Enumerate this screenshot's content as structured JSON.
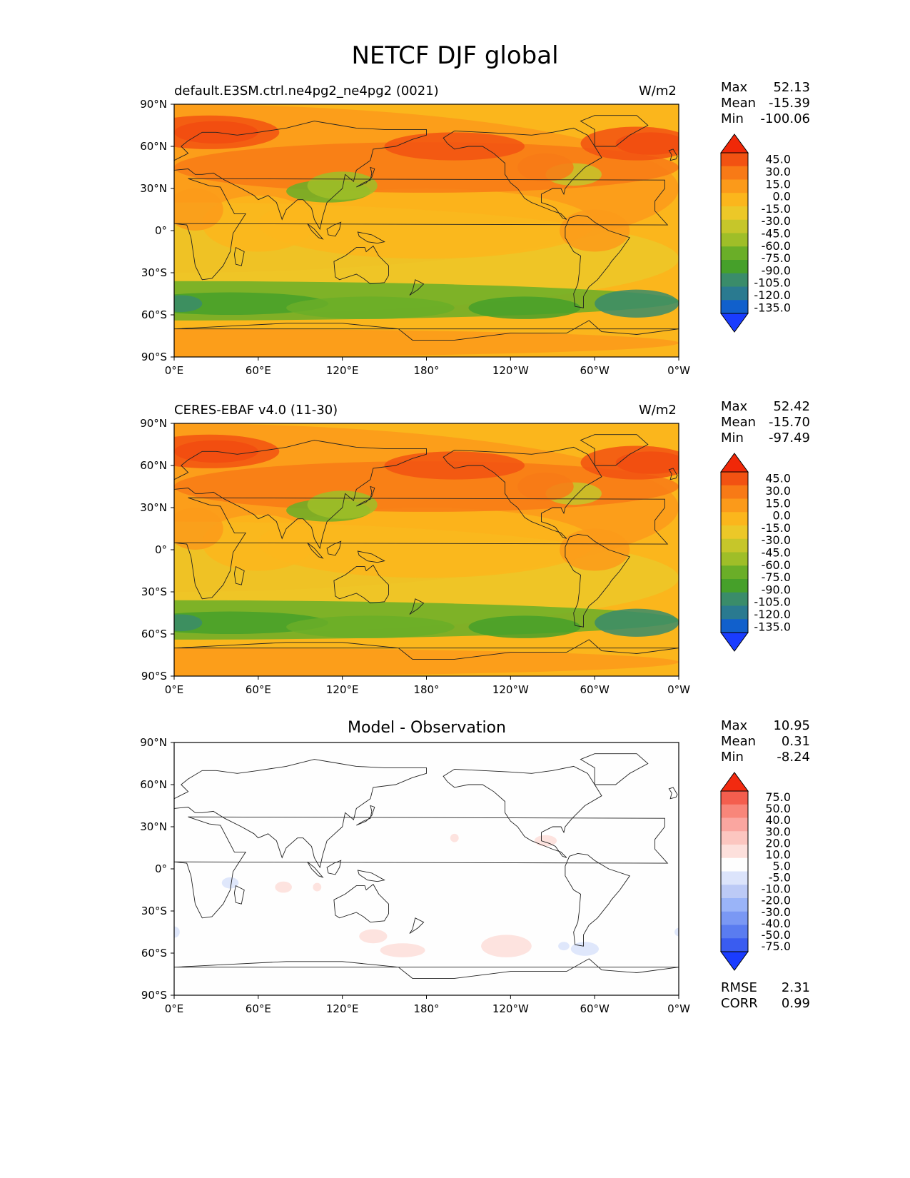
{
  "title": "NETCF DJF global",
  "units": "W/m2",
  "x_ticks": [
    "0°E",
    "60°E",
    "120°E",
    "180°",
    "120°W",
    "60°W",
    "0°W"
  ],
  "y_ticks": [
    "90°N",
    "60°N",
    "30°N",
    "0°",
    "30°S",
    "60°S",
    "90°S"
  ],
  "stats_labels": {
    "max": "Max",
    "mean": "Mean",
    "min": "Min",
    "rmse": "RMSE",
    "corr": "CORR"
  },
  "colors": {
    "land_outline": "#222222",
    "fill_levels_main": [
      "#1a3cff",
      "#1160cc",
      "#2a7a90",
      "#3a8c6a",
      "#46a02a",
      "#6aae28",
      "#9fbe28",
      "#c6c62a",
      "#ecc828",
      "#fbb61c",
      "#fb9a1a",
      "#f87a16",
      "#f25212",
      "#f02808"
    ],
    "fill_levels_diff": [
      "#1a3cff",
      "#3a5cf0",
      "#5a7cf0",
      "#7a98f4",
      "#9ab4f8",
      "#bccaf6",
      "#dce4fb",
      "#fefefe",
      "#fde0dc",
      "#fcc6c0",
      "#faa6a0",
      "#f8867a",
      "#f45e4e",
      "#f22a10"
    ]
  },
  "panels": [
    {
      "id": "test",
      "left_title": "default.E3SM.ctrl.ne4pg2_ne4pg2 (0021)",
      "right_title": "W/m2",
      "center_title": "",
      "stats": {
        "max": "52.13",
        "mean": "-15.39",
        "min": "-100.06"
      },
      "colorbar_labels": [
        "45.0",
        "30.0",
        "15.0",
        "0.0",
        "-15.0",
        "-30.0",
        "-45.0",
        "-60.0",
        "-75.0",
        "-90.0",
        "-105.0",
        "-120.0",
        "-135.0"
      ]
    },
    {
      "id": "ref",
      "left_title": "CERES-EBAF v4.0 (11-30)",
      "right_title": "W/m2",
      "center_title": "",
      "stats": {
        "max": "52.42",
        "mean": "-15.70",
        "min": "-97.49"
      },
      "colorbar_labels": [
        "45.0",
        "30.0",
        "15.0",
        "0.0",
        "-15.0",
        "-30.0",
        "-45.0",
        "-60.0",
        "-75.0",
        "-90.0",
        "-105.0",
        "-120.0",
        "-135.0"
      ]
    },
    {
      "id": "diff",
      "left_title": "",
      "right_title": "",
      "center_title": "Model - Observation",
      "stats": {
        "max": "10.95",
        "mean": "0.31",
        "min": "-8.24",
        "rmse": "2.31",
        "corr": "0.99"
      },
      "colorbar_labels": [
        "75.0",
        "50.0",
        "40.0",
        "30.0",
        "20.0",
        "10.0",
        "5.0",
        "-5.0",
        "-10.0",
        "-20.0",
        "-30.0",
        "-40.0",
        "-50.0",
        "-75.0"
      ]
    }
  ],
  "chart_data": [
    {
      "type": "heatmap",
      "title": "default.E3SM.ctrl.ne4pg2_ne4pg2 (0021)",
      "units": "W/m2",
      "x_range": [
        0,
        360
      ],
      "y_range": [
        -90,
        90
      ],
      "color_levels": [
        -135,
        -120,
        -105,
        -90,
        -75,
        -60,
        -45,
        -30,
        -15,
        0,
        15,
        30,
        45
      ],
      "stats": {
        "max": 52.13,
        "mean": -15.39,
        "min": -100.06
      },
      "approx_field": [
        {
          "region": "North Atlantic / Europe high latitudes",
          "lat": [
            45,
            75
          ],
          "value_range": [
            30,
            52
          ]
        },
        {
          "region": "Northern mid-latitude oceans",
          "lat": [
            30,
            60
          ],
          "value_range": [
            0,
            30
          ]
        },
        {
          "region": "Tropics",
          "lat": [
            -30,
            30
          ],
          "value_range": [
            -30,
            0
          ]
        },
        {
          "region": "East Asia / West Pacific",
          "lat": [
            20,
            35
          ],
          "value_range": [
            -60,
            -30
          ]
        },
        {
          "region": "Southern Ocean storm track",
          "lat": [
            -65,
            -40
          ],
          "value_range": [
            -100,
            -45
          ]
        },
        {
          "region": "Antarctica",
          "lat": [
            -90,
            -70
          ],
          "value_range": [
            0,
            15
          ]
        }
      ]
    },
    {
      "type": "heatmap",
      "title": "CERES-EBAF v4.0 (11-30)",
      "units": "W/m2",
      "x_range": [
        0,
        360
      ],
      "y_range": [
        -90,
        90
      ],
      "color_levels": [
        -135,
        -120,
        -105,
        -90,
        -75,
        -60,
        -45,
        -30,
        -15,
        0,
        15,
        30,
        45
      ],
      "stats": {
        "max": 52.42,
        "mean": -15.7,
        "min": -97.49
      },
      "approx_field": [
        {
          "region": "North Atlantic / Europe high latitudes",
          "lat": [
            45,
            75
          ],
          "value_range": [
            30,
            52
          ]
        },
        {
          "region": "Northern mid-latitude oceans",
          "lat": [
            30,
            60
          ],
          "value_range": [
            0,
            30
          ]
        },
        {
          "region": "Tropics",
          "lat": [
            -30,
            30
          ],
          "value_range": [
            -30,
            0
          ]
        },
        {
          "region": "East Asia / West Pacific",
          "lat": [
            20,
            35
          ],
          "value_range": [
            -60,
            -30
          ]
        },
        {
          "region": "Southern Ocean storm track",
          "lat": [
            -65,
            -40
          ],
          "value_range": [
            -97,
            -45
          ]
        },
        {
          "region": "Antarctica",
          "lat": [
            -90,
            -70
          ],
          "value_range": [
            0,
            15
          ]
        }
      ]
    },
    {
      "type": "heatmap",
      "title": "Model - Observation",
      "x_range": [
        0,
        360
      ],
      "y_range": [
        -90,
        90
      ],
      "color_levels": [
        -75,
        -50,
        -40,
        -30,
        -20,
        -10,
        -5,
        5,
        10,
        20,
        30,
        40,
        50,
        75
      ],
      "stats": {
        "max": 10.95,
        "mean": 0.31,
        "min": -8.24,
        "rmse": 2.31,
        "corr": 0.99
      },
      "approx_field": [
        {
          "region": "Western Indian Ocean",
          "lat": [
            -15,
            -5
          ],
          "value_range": [
            -10,
            -5
          ]
        },
        {
          "region": "Central Indian Ocean",
          "lat": [
            -15,
            -5
          ],
          "value_range": [
            5,
            10
          ]
        },
        {
          "region": "Southern Indian Ocean",
          "lat": [
            -45,
            -35
          ],
          "value_range": [
            5,
            10
          ]
        },
        {
          "region": "Southwest Pacific",
          "lat": [
            -55,
            -45
          ],
          "value_range": [
            5,
            10
          ]
        },
        {
          "region": "Southeast Pacific",
          "lat": [
            -60,
            -45
          ],
          "value_range": [
            5,
            11
          ]
        },
        {
          "region": "Off Mexico",
          "lat": [
            15,
            25
          ],
          "value_range": [
            5,
            10
          ]
        },
        {
          "region": "South of South America",
          "lat": [
            -60,
            -50
          ],
          "value_range": [
            -8,
            -5
          ]
        }
      ]
    }
  ]
}
